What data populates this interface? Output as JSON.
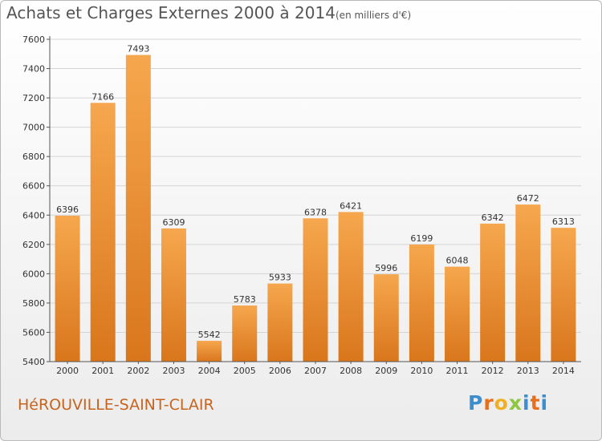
{
  "header": {
    "title": "Achats et Charges Externes 2000 à 2014",
    "subtitle": "(en milliers d'€)"
  },
  "footer": {
    "city": "HéROUVILLE-SAINT-CLAIR",
    "brand": [
      "P",
      "r",
      "o",
      "x",
      "i",
      "t",
      "i"
    ]
  },
  "colors": {
    "bar_top": "#f6a74e",
    "bar_bottom": "#d9761c",
    "city": "#c8641e",
    "brand": [
      "#3b8ed0",
      "#e8701a",
      "#f0b020",
      "#8dc63f",
      "#3b8ed0",
      "#e8701a",
      "#3b8ed0"
    ]
  },
  "chart_data": {
    "type": "bar",
    "categories": [
      "2000",
      "2001",
      "2002",
      "2003",
      "2004",
      "2005",
      "2006",
      "2007",
      "2008",
      "2009",
      "2010",
      "2011",
      "2012",
      "2013",
      "2014"
    ],
    "values": [
      6396,
      7166,
      7493,
      6309,
      5542,
      5783,
      5933,
      6378,
      6421,
      5996,
      6199,
      6048,
      6342,
      6472,
      6313
    ],
    "ylim": [
      5400,
      7600
    ],
    "yticks": [
      5400,
      5600,
      5800,
      6000,
      6200,
      6400,
      6600,
      6800,
      7000,
      7200,
      7400,
      7600
    ],
    "grid": true
  }
}
